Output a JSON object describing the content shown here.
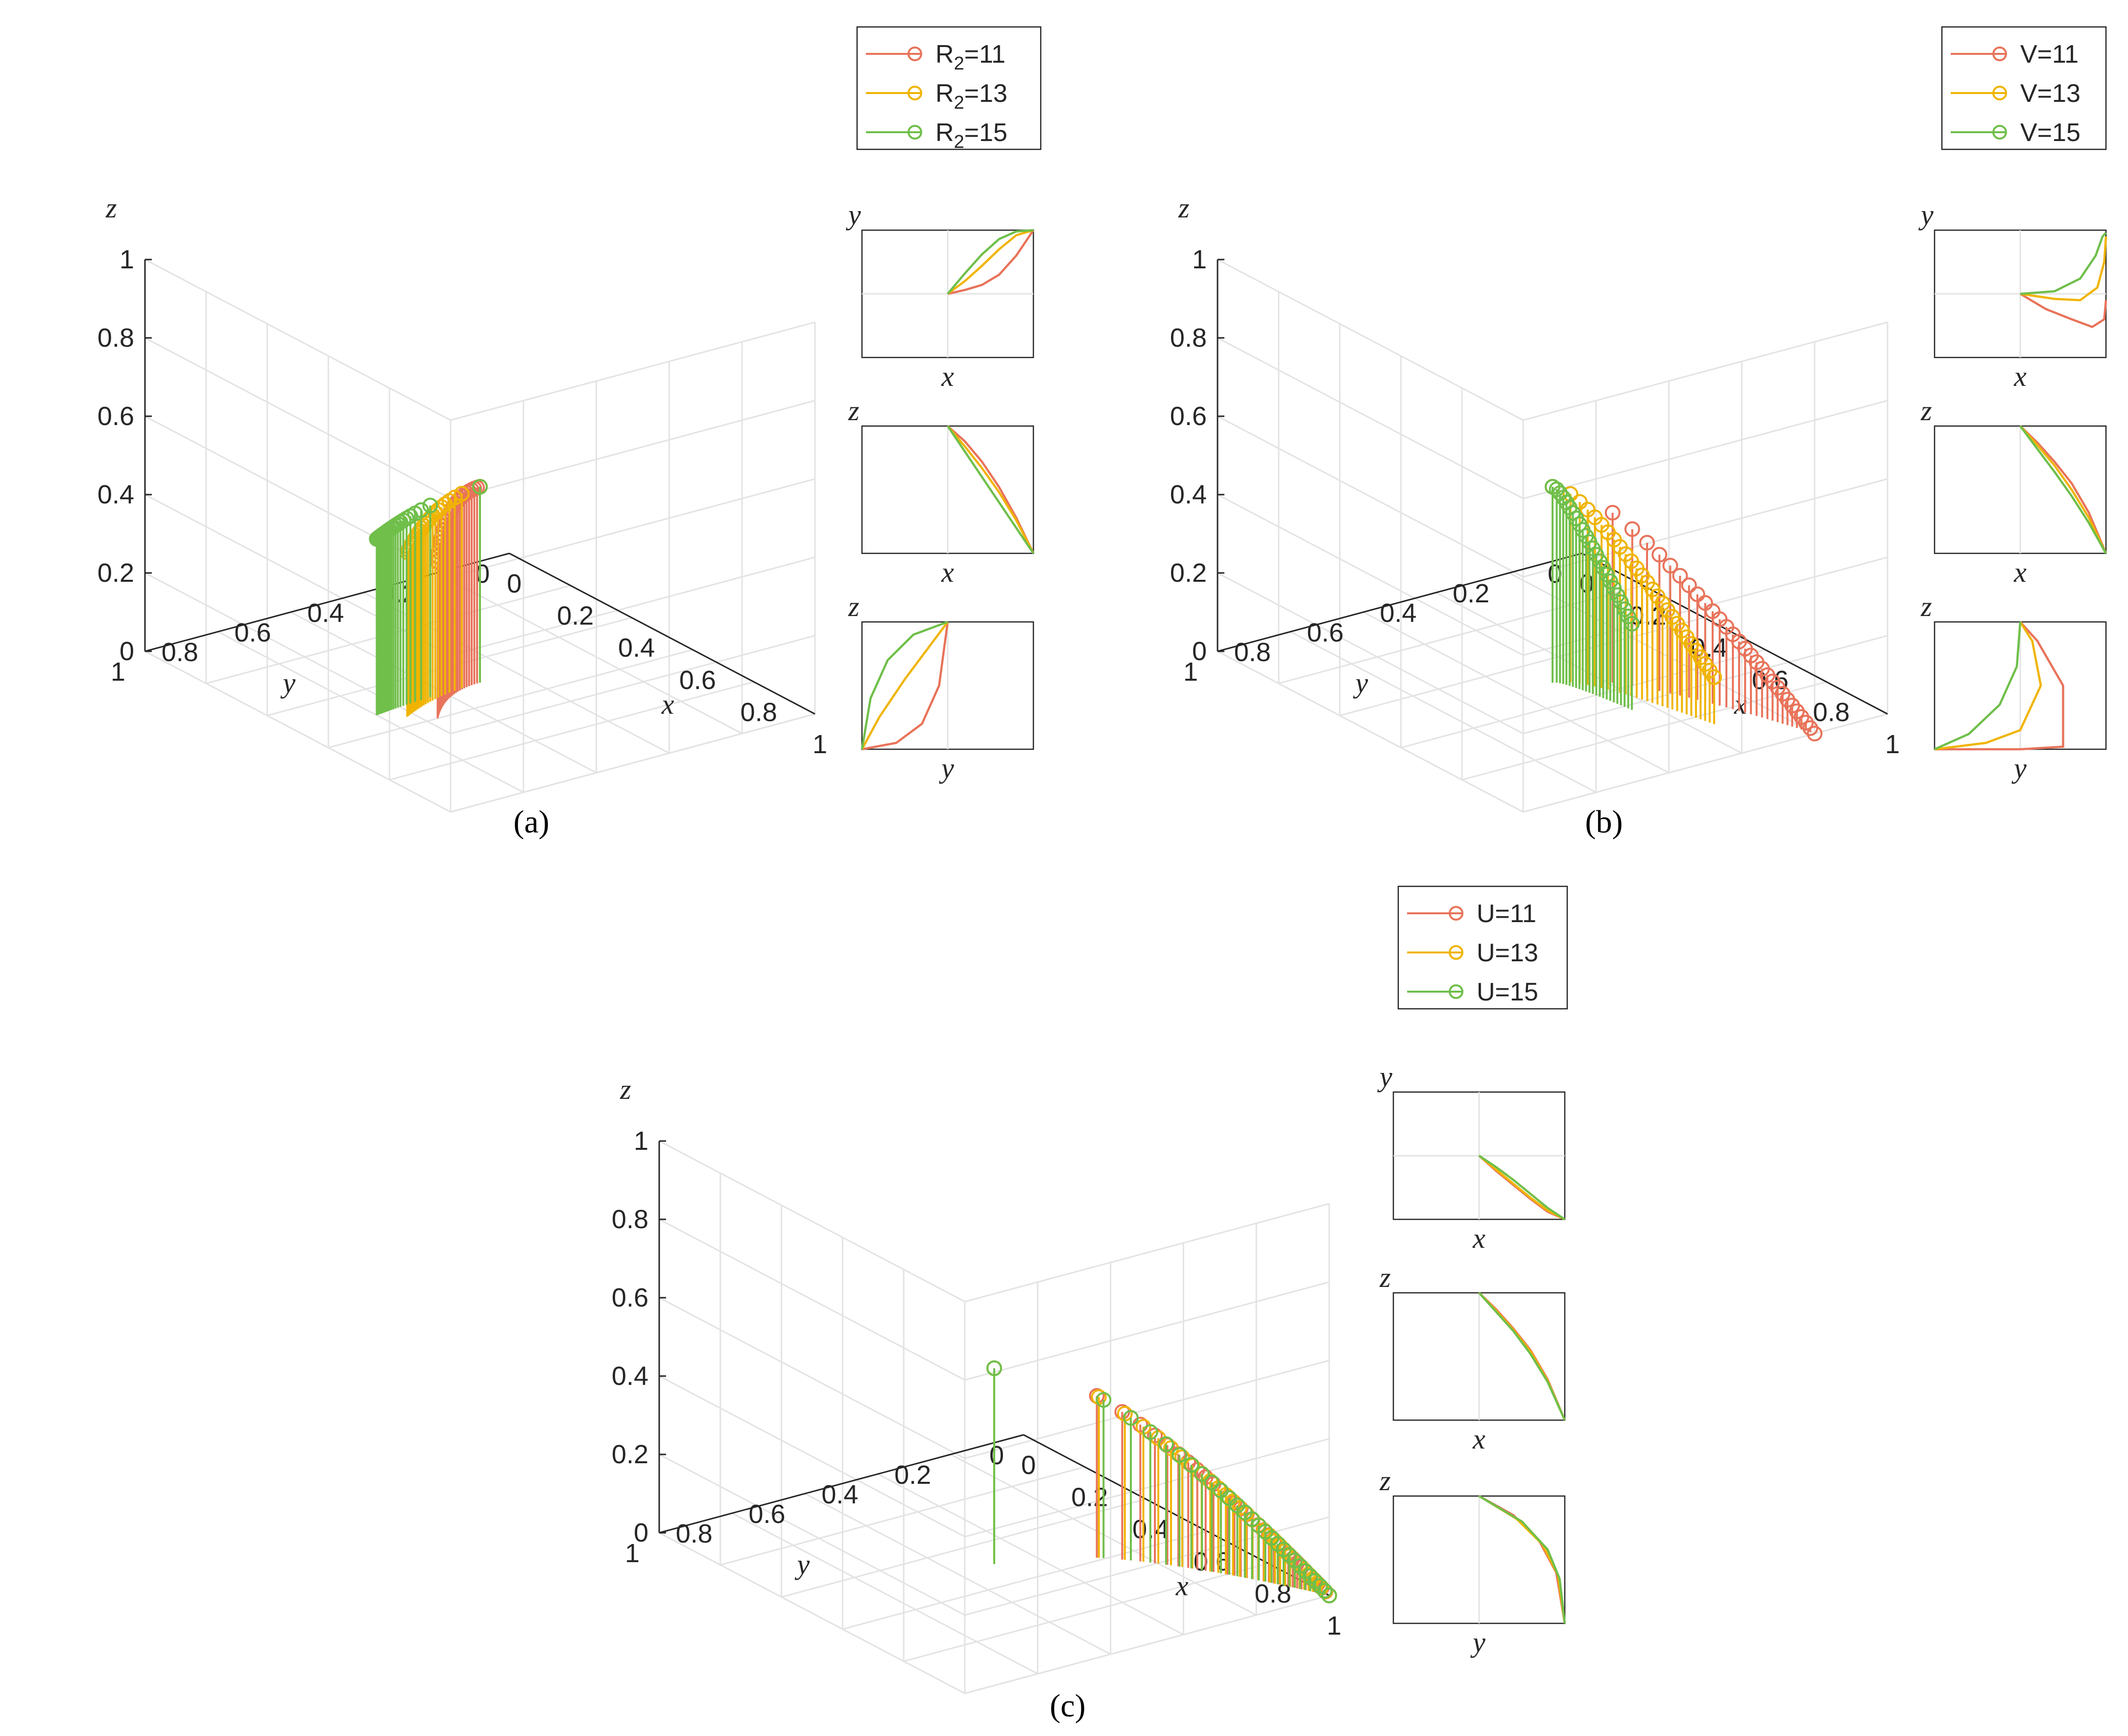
{
  "colors": {
    "s1": "#e8735a",
    "s2": "#f0b400",
    "s3": "#6fbf4a"
  },
  "chart_data": [
    {
      "type": "scatter",
      "subtype": "3d-stem",
      "panel_label": "(a)",
      "xlabel": "x",
      "ylabel": "y",
      "zlabel": "z",
      "xlim": [
        0,
        1
      ],
      "ylim": [
        0,
        1
      ],
      "zlim": [
        0,
        1
      ],
      "xticks": [
        "0",
        "0.2",
        "0.4",
        "0.6",
        "0.8",
        "1"
      ],
      "yticks": [
        "0",
        "0.2",
        "0.4",
        "0.6",
        "0.8",
        "1"
      ],
      "zticks": [
        "0",
        "0.2",
        "0.4",
        "0.6",
        "0.8",
        "1"
      ],
      "legend": {
        "placement": "top-right",
        "entries": [
          "R",
          "R",
          "R"
        ],
        "subscripts": [
          "2",
          "2",
          "2"
        ],
        "suffixes": [
          "=11",
          "=13",
          "=15"
        ]
      },
      "series": [
        {
          "name": "R2=11",
          "x0": 0.5,
          "y0": 0.5,
          "z0": 0.5,
          "x1": 0.6,
          "y1": 0.7,
          "z1": 0.4,
          "curve": 2.0,
          "n": 26
        },
        {
          "name": "R2=13",
          "x0": 0.5,
          "y0": 0.5,
          "z0": 0.5,
          "x1": 0.56,
          "y1": 0.75,
          "z1": 0.42,
          "curve": 1.0,
          "n": 24
        },
        {
          "name": "R2=15",
          "x0": 0.5,
          "y0": 0.5,
          "z0": 0.5,
          "x1": 0.52,
          "y1": 0.8,
          "z1": 0.45,
          "curve": 0.5,
          "n": 22
        }
      ],
      "insets": [
        {
          "xlabel": "x",
          "ylabel": "y",
          "refs": [
            "mid-h",
            "mid-v"
          ],
          "curves": [
            [
              [
                0.5,
                0.5
              ],
              [
                0.6,
                0.53
              ],
              [
                0.7,
                0.57
              ],
              [
                0.8,
                0.65
              ],
              [
                0.9,
                0.8
              ],
              [
                1.0,
                1.0
              ]
            ],
            [
              [
                0.5,
                0.5
              ],
              [
                0.6,
                0.6
              ],
              [
                0.7,
                0.72
              ],
              [
                0.8,
                0.85
              ],
              [
                0.9,
                0.96
              ],
              [
                1.0,
                1.0
              ]
            ],
            [
              [
                0.5,
                0.5
              ],
              [
                0.6,
                0.66
              ],
              [
                0.7,
                0.81
              ],
              [
                0.8,
                0.93
              ],
              [
                0.9,
                0.99
              ],
              [
                1.0,
                1.0
              ]
            ]
          ]
        },
        {
          "xlabel": "x",
          "ylabel": "z",
          "refs": [
            "mid-v"
          ],
          "curves": [
            [
              [
                0.5,
                1.0
              ],
              [
                0.6,
                0.88
              ],
              [
                0.7,
                0.72
              ],
              [
                0.8,
                0.52
              ],
              [
                0.9,
                0.28
              ],
              [
                1.0,
                0.0
              ]
            ],
            [
              [
                0.5,
                1.0
              ],
              [
                0.6,
                0.84
              ],
              [
                0.7,
                0.67
              ],
              [
                0.8,
                0.48
              ],
              [
                0.9,
                0.26
              ],
              [
                1.0,
                0.0
              ]
            ],
            [
              [
                0.5,
                1.0
              ],
              [
                0.6,
                0.8
              ],
              [
                0.7,
                0.6
              ],
              [
                0.8,
                0.4
              ],
              [
                0.9,
                0.2
              ],
              [
                1.0,
                0.0
              ]
            ]
          ]
        },
        {
          "xlabel": "y",
          "ylabel": "z",
          "refs": [
            "mid-v"
          ],
          "curves": [
            [
              [
                0.0,
                0.0
              ],
              [
                0.2,
                0.05
              ],
              [
                0.35,
                0.2
              ],
              [
                0.45,
                0.5
              ],
              [
                0.5,
                1.0
              ]
            ],
            [
              [
                0.0,
                0.0
              ],
              [
                0.1,
                0.25
              ],
              [
                0.25,
                0.55
              ],
              [
                0.4,
                0.82
              ],
              [
                0.5,
                1.0
              ]
            ],
            [
              [
                0.0,
                0.0
              ],
              [
                0.05,
                0.4
              ],
              [
                0.15,
                0.7
              ],
              [
                0.3,
                0.9
              ],
              [
                0.5,
                1.0
              ]
            ]
          ]
        }
      ]
    },
    {
      "type": "scatter",
      "subtype": "3d-stem",
      "panel_label": "(b)",
      "xlabel": "x",
      "ylabel": "y",
      "zlabel": "z",
      "xlim": [
        0,
        1
      ],
      "ylim": [
        0,
        1
      ],
      "zlim": [
        0,
        1
      ],
      "xticks": [
        "0",
        "0.2",
        "0.4",
        "0.6",
        "0.8",
        "1"
      ],
      "yticks": [
        "0",
        "0.2",
        "0.4",
        "0.6",
        "0.8",
        "1"
      ],
      "zticks": [
        "0",
        "0.2",
        "0.4",
        "0.6",
        "0.8",
        "1"
      ],
      "legend": {
        "placement": "top-right",
        "entries": [
          "V=11",
          "V=13",
          "V=15"
        ]
      },
      "series": [
        {
          "name": "V=11",
          "x0": 0.5,
          "y0": 0.5,
          "z0": 0.5,
          "x1": 1.0,
          "y1": 0.2,
          "z1": 0.0,
          "curve": 0.6,
          "n": 30
        },
        {
          "name": "V=13",
          "x0": 0.5,
          "y0": 0.5,
          "z0": 0.5,
          "x1": 0.85,
          "y1": 0.35,
          "z1": 0.12,
          "curve": 0.9,
          "n": 28
        },
        {
          "name": "V=15",
          "x0": 0.5,
          "y0": 0.5,
          "z0": 0.5,
          "x1": 0.7,
          "y1": 0.45,
          "z1": 0.22,
          "curve": 1.2,
          "n": 24
        }
      ],
      "insets": [
        {
          "xlabel": "x",
          "ylabel": "y",
          "refs": [
            "mid-h",
            "mid-v"
          ],
          "curves": [
            [
              [
                0.5,
                0.5
              ],
              [
                0.65,
                0.38
              ],
              [
                0.8,
                0.3
              ],
              [
                0.92,
                0.24
              ],
              [
                0.99,
                0.3
              ],
              [
                1.0,
                0.45
              ]
            ],
            [
              [
                0.5,
                0.5
              ],
              [
                0.7,
                0.46
              ],
              [
                0.85,
                0.45
              ],
              [
                0.95,
                0.55
              ],
              [
                0.99,
                0.75
              ],
              [
                1.0,
                0.95
              ]
            ],
            [
              [
                0.5,
                0.5
              ],
              [
                0.7,
                0.52
              ],
              [
                0.85,
                0.62
              ],
              [
                0.94,
                0.8
              ],
              [
                0.98,
                0.95
              ],
              [
                1.0,
                0.98
              ]
            ]
          ]
        },
        {
          "xlabel": "x",
          "ylabel": "z",
          "refs": [
            "mid-v"
          ],
          "curves": [
            [
              [
                0.5,
                1.0
              ],
              [
                0.6,
                0.87
              ],
              [
                0.7,
                0.72
              ],
              [
                0.8,
                0.55
              ],
              [
                0.9,
                0.32
              ],
              [
                1.0,
                0.0
              ]
            ],
            [
              [
                0.5,
                1.0
              ],
              [
                0.6,
                0.85
              ],
              [
                0.7,
                0.69
              ],
              [
                0.8,
                0.5
              ],
              [
                0.9,
                0.28
              ],
              [
                1.0,
                0.0
              ]
            ],
            [
              [
                0.5,
                1.0
              ],
              [
                0.6,
                0.82
              ],
              [
                0.7,
                0.64
              ],
              [
                0.8,
                0.45
              ],
              [
                0.9,
                0.24
              ],
              [
                1.0,
                0.0
              ]
            ]
          ]
        },
        {
          "xlabel": "y",
          "ylabel": "z",
          "refs": [
            "mid-v"
          ],
          "curves": [
            [
              [
                0.0,
                0.0
              ],
              [
                0.5,
                0.0
              ],
              [
                0.75,
                0.02
              ],
              [
                0.75,
                0.5
              ],
              [
                0.6,
                0.85
              ],
              [
                0.5,
                1.0
              ]
            ],
            [
              [
                0.0,
                0.0
              ],
              [
                0.3,
                0.05
              ],
              [
                0.5,
                0.15
              ],
              [
                0.62,
                0.5
              ],
              [
                0.57,
                0.85
              ],
              [
                0.5,
                1.0
              ]
            ],
            [
              [
                0.0,
                0.0
              ],
              [
                0.2,
                0.12
              ],
              [
                0.38,
                0.35
              ],
              [
                0.48,
                0.65
              ],
              [
                0.5,
                1.0
              ]
            ]
          ]
        }
      ]
    },
    {
      "type": "scatter",
      "subtype": "3d-stem",
      "panel_label": "(c)",
      "xlabel": "x",
      "ylabel": "y",
      "zlabel": "z",
      "xlim": [
        0,
        1
      ],
      "ylim": [
        0,
        1
      ],
      "zlim": [
        0,
        1
      ],
      "xticks": [
        "0",
        "0.2",
        "0.4",
        "0.6",
        "0.8",
        "1"
      ],
      "yticks": [
        "0",
        "0.2",
        "0.4",
        "0.6",
        "0.8",
        "1"
      ],
      "zticks": [
        "0",
        "0.2",
        "0.4",
        "0.6",
        "0.8",
        "1"
      ],
      "legend": {
        "placement": "top-right",
        "entries": [
          "U=11",
          "U=13",
          "U=15"
        ]
      },
      "series": [
        {
          "name": "U=11",
          "x0": 0.5,
          "y0": 0.5,
          "z0": 0.5,
          "x1": 1.0,
          "y1": 0.0,
          "z1": 0.0,
          "curve": 0.5,
          "n": 34
        },
        {
          "name": "U=13",
          "x0": 0.5,
          "y0": 0.5,
          "z0": 0.5,
          "x1": 1.0,
          "y1": 0.0,
          "z1": 0.0,
          "curve": 0.5,
          "n": 32
        },
        {
          "name": "U=15",
          "x0": 0.5,
          "y0": 0.5,
          "z0": 0.5,
          "x1": 1.0,
          "y1": 0.0,
          "z1": 0.0,
          "curve": 0.5,
          "n": 28
        }
      ],
      "insets": [
        {
          "xlabel": "x",
          "ylabel": "y",
          "refs": [
            "mid-h",
            "mid-v"
          ],
          "curves": [
            [
              [
                0.5,
                0.5
              ],
              [
                0.6,
                0.38
              ],
              [
                0.7,
                0.27
              ],
              [
                0.8,
                0.16
              ],
              [
                0.9,
                0.06
              ],
              [
                1.0,
                0.0
              ]
            ],
            [
              [
                0.5,
                0.5
              ],
              [
                0.6,
                0.39
              ],
              [
                0.7,
                0.28
              ],
              [
                0.8,
                0.17
              ],
              [
                0.9,
                0.07
              ],
              [
                1.0,
                0.0
              ]
            ],
            [
              [
                0.5,
                0.5
              ],
              [
                0.6,
                0.41
              ],
              [
                0.7,
                0.31
              ],
              [
                0.8,
                0.2
              ],
              [
                0.9,
                0.09
              ],
              [
                1.0,
                0.0
              ]
            ]
          ]
        },
        {
          "xlabel": "x",
          "ylabel": "z",
          "refs": [
            "mid-v"
          ],
          "curves": [
            [
              [
                0.5,
                1.0
              ],
              [
                0.6,
                0.87
              ],
              [
                0.7,
                0.72
              ],
              [
                0.8,
                0.55
              ],
              [
                0.9,
                0.32
              ],
              [
                1.0,
                0.0
              ]
            ],
            [
              [
                0.5,
                1.0
              ],
              [
                0.6,
                0.86
              ],
              [
                0.7,
                0.71
              ],
              [
                0.8,
                0.54
              ],
              [
                0.9,
                0.31
              ],
              [
                1.0,
                0.0
              ]
            ],
            [
              [
                0.5,
                1.0
              ],
              [
                0.6,
                0.85
              ],
              [
                0.7,
                0.7
              ],
              [
                0.8,
                0.52
              ],
              [
                0.9,
                0.3
              ],
              [
                1.0,
                0.0
              ]
            ]
          ]
        },
        {
          "xlabel": "y",
          "ylabel": "z",
          "refs": [
            "mid-v"
          ],
          "curves": [
            [
              [
                0.5,
                1.0
              ],
              [
                0.7,
                0.85
              ],
              [
                0.85,
                0.65
              ],
              [
                0.95,
                0.4
              ],
              [
                1.0,
                0.0
              ]
            ],
            [
              [
                0.5,
                1.0
              ],
              [
                0.72,
                0.82
              ],
              [
                0.87,
                0.62
              ],
              [
                0.96,
                0.38
              ],
              [
                1.0,
                0.0
              ]
            ],
            [
              [
                0.5,
                1.0
              ],
              [
                0.75,
                0.8
              ],
              [
                0.9,
                0.58
              ],
              [
                0.97,
                0.35
              ],
              [
                1.0,
                0.0
              ]
            ]
          ]
        }
      ]
    }
  ]
}
